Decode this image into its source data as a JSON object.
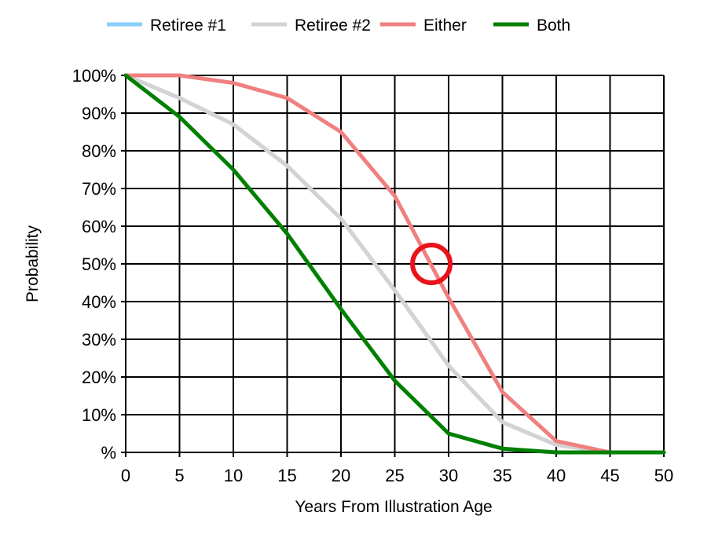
{
  "chart_data": {
    "type": "line",
    "xlabel": "Years From Illustration Age",
    "ylabel": "Probability",
    "xlim": [
      0,
      50
    ],
    "ylim": [
      0,
      100
    ],
    "x_ticks": [
      0,
      5,
      10,
      15,
      20,
      25,
      30,
      35,
      40,
      45,
      50
    ],
    "x_tick_labels": [
      "0",
      "5",
      "10",
      "15",
      "20",
      "25",
      "30",
      "35",
      "40",
      "45",
      "50"
    ],
    "y_ticks": [
      0,
      10,
      20,
      30,
      40,
      50,
      60,
      70,
      80,
      90,
      100
    ],
    "y_tick_labels": [
      "%",
      "10%",
      "20%",
      "30%",
      "40%",
      "50%",
      "60%",
      "70%",
      "80%",
      "90%",
      "100%"
    ],
    "grid": true,
    "legend_position": "top",
    "x": [
      0,
      5,
      10,
      15,
      20,
      25,
      30,
      35,
      40,
      45,
      50
    ],
    "series": [
      {
        "name": "Retiree #1",
        "color": "#87cefa",
        "values": [
          100,
          94,
          87,
          76,
          62,
          43,
          23,
          8,
          2,
          0,
          0
        ]
      },
      {
        "name": "Retiree #2",
        "color": "#d3d3d3",
        "values": [
          100,
          94,
          87,
          76,
          62,
          43,
          23,
          8,
          2,
          0,
          0
        ]
      },
      {
        "name": "Either",
        "color": "#f08080",
        "values": [
          100,
          100,
          98,
          94,
          85,
          68,
          41,
          16,
          3,
          0,
          0
        ]
      },
      {
        "name": "Both",
        "color": "#008000",
        "values": [
          100,
          89,
          75,
          58,
          38,
          19,
          5,
          1,
          0,
          0,
          0
        ]
      }
    ],
    "annotation": {
      "shape": "circle",
      "color": "#e8141c",
      "x": 28.4,
      "y": 50
    }
  }
}
